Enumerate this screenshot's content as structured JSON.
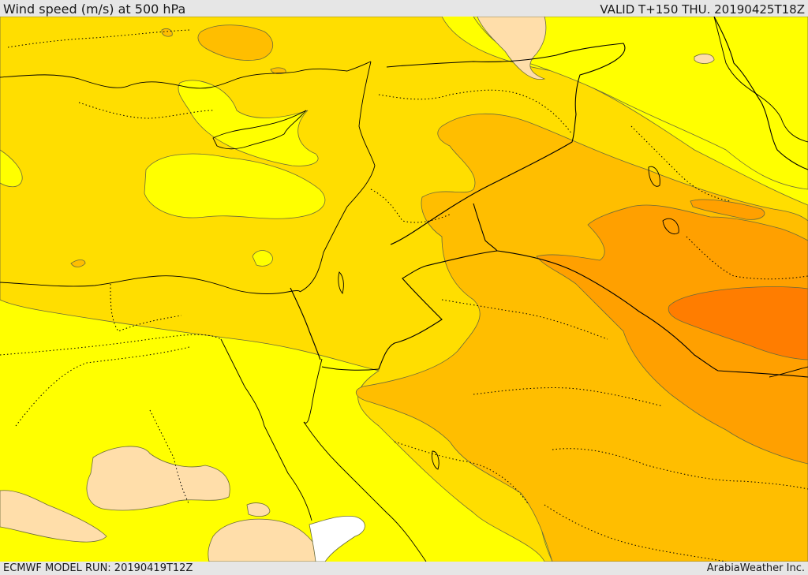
{
  "header": {
    "title": "Wind speed (m/s) at 500 hPa",
    "valid": "VALID T+150 THU. 20190425T18Z"
  },
  "footer": {
    "model_run": "ECMWF MODEL RUN: 20190419T12Z",
    "credit": "ArabiaWeather Inc."
  },
  "colors": {
    "band_lowest": "#ffffff",
    "band_light": "#ffdeaa",
    "band_yellow": "#ffff00",
    "band_gold": "#ffde00",
    "band_amber": "#ffbe00",
    "band_orange": "#ffa000",
    "band_dark_orange": "#ff7d00"
  }
}
